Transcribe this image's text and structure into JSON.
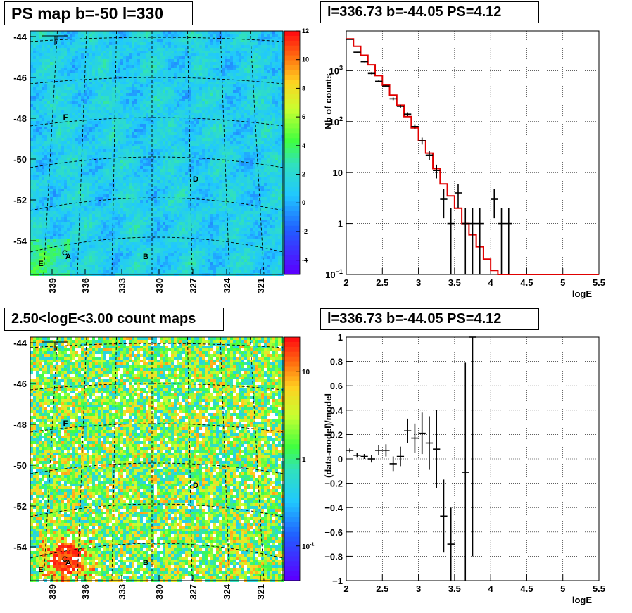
{
  "chart_data": [
    {
      "id": "ps_map",
      "type": "heatmap",
      "title": "PS map b=-50 l=330",
      "y_ticks": [
        "-44",
        "-46",
        "-48",
        "-50",
        "-52",
        "-54"
      ],
      "x_ticks": [
        "339",
        "336",
        "333",
        "330",
        "327",
        "324",
        "321"
      ],
      "colorbar": {
        "scale": "linear",
        "range": [
          -5,
          12
        ],
        "ticks": [
          "12",
          "10",
          "8",
          "6",
          "4",
          "2",
          "0",
          "-2",
          "-4"
        ]
      },
      "sources": [
        {
          "label": "F"
        },
        {
          "label": "D"
        },
        {
          "label": "C"
        },
        {
          "label": "A"
        },
        {
          "label": "B"
        },
        {
          "label": "E"
        }
      ]
    },
    {
      "id": "spectrum",
      "type": "line",
      "title": "l=336.73 b=-44.05 PS=4.12",
      "xlabel": "logE",
      "ylabel": "Nb of counts",
      "xlim": [
        2,
        5.5
      ],
      "ylog": true,
      "ylim": [
        0.1,
        6000
      ],
      "grid": true,
      "x_ticks": [
        "2",
        "2.5",
        "3",
        "3.5",
        "4",
        "4.5",
        "5",
        "5.5"
      ],
      "y_ticks": [
        {
          "v": 0.1,
          "base": "10",
          "exp": "−1"
        },
        {
          "v": 1,
          "base": "1",
          "exp": ""
        },
        {
          "v": 10,
          "base": "10",
          "exp": ""
        },
        {
          "v": 100,
          "base": "10",
          "exp": "2"
        },
        {
          "v": 1000,
          "base": "10",
          "exp": "3"
        }
      ],
      "data_points": [
        {
          "x": 2.05,
          "y": 4100
        },
        {
          "x": 2.15,
          "y": 2300
        },
        {
          "x": 2.25,
          "y": 1500
        },
        {
          "x": 2.35,
          "y": 880
        },
        {
          "x": 2.45,
          "y": 620
        },
        {
          "x": 2.55,
          "y": 500
        },
        {
          "x": 2.65,
          "y": 280
        },
        {
          "x": 2.75,
          "y": 200
        },
        {
          "x": 2.85,
          "y": 140
        },
        {
          "x": 2.95,
          "y": 80
        },
        {
          "x": 3.05,
          "y": 42
        },
        {
          "x": 3.15,
          "y": 22
        },
        {
          "x": 3.25,
          "y": 11
        },
        {
          "x": 3.35,
          "y": 3
        },
        {
          "x": 3.45,
          "y": 1
        },
        {
          "x": 3.55,
          "y": 4
        },
        {
          "x": 3.65,
          "y": 1
        },
        {
          "x": 3.75,
          "y": 1
        },
        {
          "x": 3.85,
          "y": 1
        },
        {
          "x": 4.05,
          "y": 3
        },
        {
          "x": 4.15,
          "y": 1
        },
        {
          "x": 4.25,
          "y": 1
        }
      ],
      "model_steps": [
        {
          "x0": 2.0,
          "x1": 2.1,
          "y": 4200
        },
        {
          "x0": 2.1,
          "x1": 2.2,
          "y": 3000
        },
        {
          "x0": 2.2,
          "x1": 2.3,
          "y": 2000
        },
        {
          "x0": 2.3,
          "x1": 2.4,
          "y": 1300
        },
        {
          "x0": 2.4,
          "x1": 2.5,
          "y": 800
        },
        {
          "x0": 2.5,
          "x1": 2.6,
          "y": 520
        },
        {
          "x0": 2.6,
          "x1": 2.7,
          "y": 330
        },
        {
          "x0": 2.7,
          "x1": 2.8,
          "y": 210
        },
        {
          "x0": 2.8,
          "x1": 2.9,
          "y": 125
        },
        {
          "x0": 2.9,
          "x1": 3.0,
          "y": 75
        },
        {
          "x0": 3.0,
          "x1": 3.1,
          "y": 42
        },
        {
          "x0": 3.1,
          "x1": 3.2,
          "y": 24
        },
        {
          "x0": 3.2,
          "x1": 3.3,
          "y": 12
        },
        {
          "x0": 3.3,
          "x1": 3.4,
          "y": 6
        },
        {
          "x0": 3.4,
          "x1": 3.5,
          "y": 3.5
        },
        {
          "x0": 3.5,
          "x1": 3.6,
          "y": 2
        },
        {
          "x0": 3.6,
          "x1": 3.7,
          "y": 1
        },
        {
          "x0": 3.7,
          "x1": 3.8,
          "y": 0.6
        },
        {
          "x0": 3.8,
          "x1": 3.9,
          "y": 0.35
        },
        {
          "x0": 3.9,
          "x1": 4.0,
          "y": 0.2
        },
        {
          "x0": 4.0,
          "x1": 4.1,
          "y": 0.12
        },
        {
          "x0": 4.1,
          "x1": 5.5,
          "y": 0.1
        }
      ],
      "model_color": "#e00000"
    },
    {
      "id": "count_map",
      "type": "heatmap",
      "title": "2.50<logE<3.00 count maps",
      "y_ticks": [
        "-44",
        "-46",
        "-48",
        "-50",
        "-52",
        "-54"
      ],
      "x_ticks": [
        "339",
        "336",
        "333",
        "330",
        "327",
        "324",
        "321"
      ],
      "colorbar": {
        "scale": "log",
        "range": [
          0.04,
          25
        ],
        "ticks": [
          {
            "v": 10,
            "base": "10",
            "exp": ""
          },
          {
            "v": 1,
            "base": "1",
            "exp": ""
          },
          {
            "v": 0.1,
            "base": "10",
            "exp": "-1"
          }
        ]
      },
      "sources": [
        {
          "label": "F"
        },
        {
          "label": "D"
        },
        {
          "label": "C"
        },
        {
          "label": "A"
        },
        {
          "label": "B"
        },
        {
          "label": "E"
        }
      ]
    },
    {
      "id": "residuals",
      "type": "scatter",
      "title": "l=336.73 b=-44.05 PS=4.12",
      "xlabel": "logE",
      "ylabel": "(data-model)/model",
      "xlim": [
        2,
        5.5
      ],
      "ylim": [
        -1,
        1
      ],
      "grid": true,
      "x_ticks": [
        "2",
        "2.5",
        "3",
        "3.5",
        "4",
        "4.5",
        "5",
        "5.5"
      ],
      "y_ticks": [
        "−1",
        "−0.8",
        "−0.6",
        "−0.4",
        "−0.2",
        "0",
        "0.2",
        "0.4",
        "0.6",
        "0.8",
        "1"
      ],
      "data_points": [
        {
          "x": 2.05,
          "y": 0.07,
          "err": 0.015
        },
        {
          "x": 2.15,
          "y": 0.03,
          "err": 0.02
        },
        {
          "x": 2.25,
          "y": 0.02,
          "err": 0.02
        },
        {
          "x": 2.35,
          "y": 0.0,
          "err": 0.03
        },
        {
          "x": 2.45,
          "y": 0.07,
          "err": 0.04
        },
        {
          "x": 2.55,
          "y": 0.07,
          "err": 0.05
        },
        {
          "x": 2.65,
          "y": -0.04,
          "err": 0.06
        },
        {
          "x": 2.75,
          "y": 0.02,
          "err": 0.08
        },
        {
          "x": 2.85,
          "y": 0.23,
          "err": 0.1
        },
        {
          "x": 2.95,
          "y": 0.17,
          "err": 0.12
        },
        {
          "x": 3.05,
          "y": 0.21,
          "err": 0.17
        },
        {
          "x": 3.15,
          "y": 0.13,
          "err": 0.22
        },
        {
          "x": 3.25,
          "y": 0.08,
          "err": 0.32
        },
        {
          "x": 3.35,
          "y": -0.47,
          "err": 0.3
        },
        {
          "x": 3.45,
          "y": -0.7,
          "err": 0.3
        },
        {
          "x": 3.65,
          "y": -0.11,
          "err": 0.9
        },
        {
          "x": 3.75,
          "y": 1.0,
          "err": 1.8
        }
      ]
    }
  ]
}
